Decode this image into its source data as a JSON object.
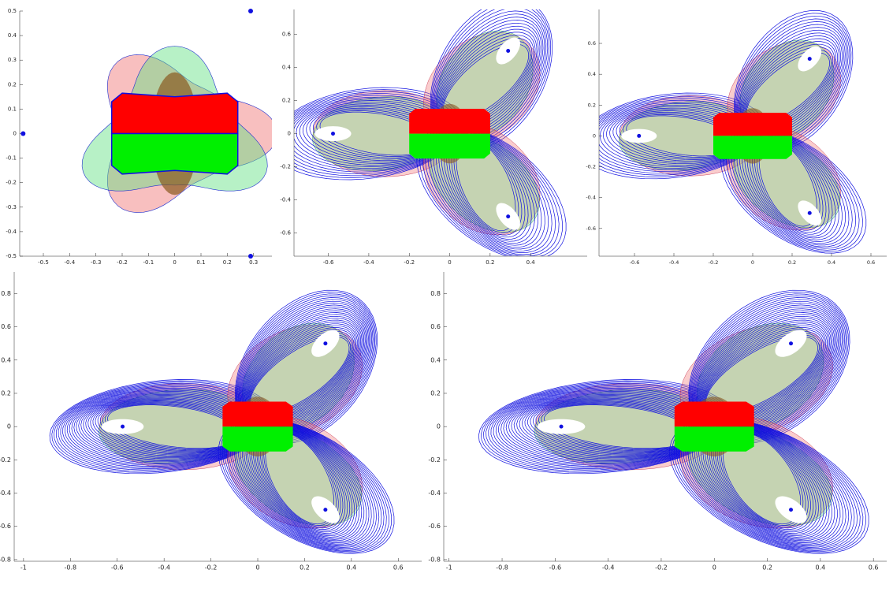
{
  "chart_data": [
    {
      "type": "scatter",
      "x": [
        -0.577,
        0.289,
        0.289
      ],
      "y": [
        0,
        0.5,
        -0.5
      ],
      "color": "#1010e0",
      "xlim": [
        -0.59,
        0.37
      ],
      "ylim": [
        -0.5,
        0.5
      ],
      "xticks": [
        -0.5,
        -0.4,
        -0.3,
        -0.2,
        -0.1,
        0,
        0.1,
        0.2,
        0.3
      ],
      "yticks": [
        -0.5,
        -0.4,
        -0.3,
        -0.2,
        -0.1,
        0,
        0.1,
        0.2,
        0.3,
        0.4,
        0.5
      ]
    },
    {
      "type": "scatter",
      "x": [
        -0.577,
        0.289,
        0.289
      ],
      "y": [
        0,
        0.5,
        -0.5
      ],
      "color": "#1010e0",
      "xlim": [
        -0.77,
        0.68
      ],
      "ylim": [
        -0.74,
        0.75
      ],
      "xticks": [
        -0.6,
        -0.4,
        -0.2,
        0,
        0.2,
        0.4
      ],
      "yticks": [
        -0.6,
        -0.4,
        -0.2,
        0,
        0.2,
        0.4,
        0.6
      ]
    },
    {
      "type": "scatter",
      "x": [
        -0.577,
        0.289,
        0.289
      ],
      "y": [
        0,
        0.5,
        -0.5
      ],
      "color": "#1010e0",
      "xlim": [
        -0.78,
        0.68
      ],
      "ylim": [
        -0.78,
        0.82
      ],
      "xticks": [
        -0.6,
        -0.4,
        -0.2,
        0,
        0.2,
        0.4,
        0.6
      ],
      "yticks": [
        -0.6,
        -0.4,
        -0.2,
        0,
        0.2,
        0.4,
        0.6
      ]
    },
    {
      "type": "scatter",
      "x": [
        -0.577,
        0.289,
        0.289
      ],
      "y": [
        0,
        0.5,
        -0.5
      ],
      "color": "#1010e0",
      "xlim": [
        -1.04,
        0.7
      ],
      "ylim": [
        -0.81,
        0.93
      ],
      "xticks": [
        -1,
        -0.8,
        -0.6,
        -0.4,
        -0.2,
        0,
        0.2,
        0.4,
        0.6
      ],
      "yticks": [
        -0.8,
        -0.6,
        -0.4,
        -0.2,
        0,
        0.2,
        0.4,
        0.6,
        0.8
      ]
    },
    {
      "type": "scatter",
      "x": [
        -0.577,
        0.289,
        0.289
      ],
      "y": [
        0,
        0.5,
        -0.5
      ],
      "color": "#1010e0",
      "xlim": [
        -1.02,
        0.65
      ],
      "ylim": [
        -0.81,
        0.93
      ],
      "xticks": [
        -1,
        -0.8,
        -0.6,
        -0.4,
        -0.2,
        0,
        0.2,
        0.4,
        0.6
      ],
      "yticks": [
        -0.8,
        -0.6,
        -0.4,
        -0.2,
        0,
        0.2,
        0.4,
        0.6,
        0.8
      ]
    }
  ]
}
